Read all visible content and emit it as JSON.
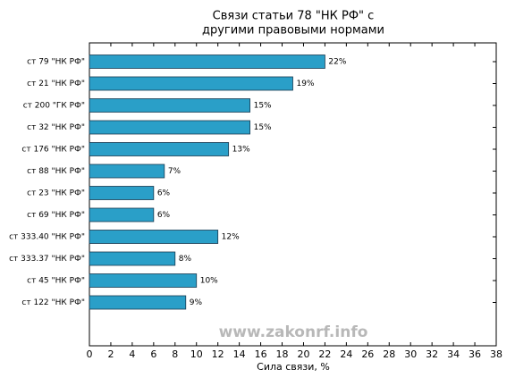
{
  "chart_data": {
    "type": "barh",
    "title": [
      "Связи статьи 78 \"НК РФ\" с",
      "другими правовыми нормами"
    ],
    "xlabel": "Сила связи, %",
    "watermark": "www.zakonrf.info",
    "categories": [
      "ст 79 \"НК РФ\"",
      "ст 21 \"НК РФ\"",
      "ст 200 \"ГК РФ\"",
      "ст 32 \"НК РФ\"",
      "ст 176 \"НК РФ\"",
      "ст 88 \"НК РФ\"",
      "ст 23 \"НК РФ\"",
      "ст 69 \"НК РФ\"",
      "ст 333.40 \"НК РФ\"",
      "ст 333.37 \"НК РФ\"",
      "ст 45 \"НК РФ\"",
      "ст 122 \"НК РФ\""
    ],
    "values": [
      22,
      19,
      15,
      15,
      13,
      7,
      6,
      6,
      12,
      8,
      10,
      9
    ],
    "value_labels": [
      "22%",
      "19%",
      "15%",
      "15%",
      "13%",
      "7%",
      "6%",
      "6%",
      "12%",
      "8%",
      "10%",
      "9%"
    ],
    "color": "#2a9fc8",
    "xlim": [
      0,
      38
    ],
    "xticks": [
      0,
      2,
      4,
      6,
      8,
      10,
      12,
      14,
      16,
      18,
      20,
      22,
      24,
      26,
      28,
      30,
      32,
      34,
      36,
      38
    ]
  }
}
